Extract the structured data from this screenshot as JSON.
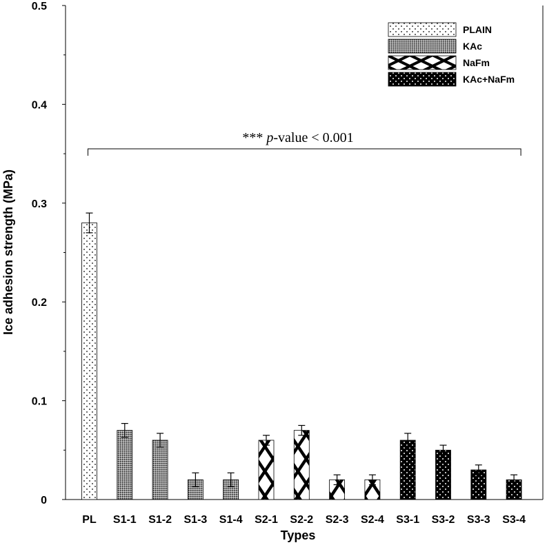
{
  "chart_data": {
    "type": "bar",
    "title": "",
    "xlabel": "Types",
    "ylabel": "Ice adhesion strength (MPa)",
    "ylim": [
      0,
      0.5
    ],
    "yticks": [
      "0",
      "0.1",
      "0.2",
      "0.3",
      "0.4",
      "0.5"
    ],
    "grid": false,
    "legend_position": "top-right",
    "categories": [
      "PL",
      "S1-1",
      "S1-2",
      "S1-3",
      "S1-4",
      "S2-1",
      "S2-2",
      "S2-3",
      "S2-4",
      "S3-1",
      "S3-2",
      "S3-3",
      "S3-4"
    ],
    "values": [
      0.28,
      0.07,
      0.06,
      0.02,
      0.02,
      0.06,
      0.07,
      0.02,
      0.02,
      0.06,
      0.05,
      0.03,
      0.02
    ],
    "errors": [
      0.01,
      0.007,
      0.007,
      0.007,
      0.007,
      0.005,
      0.005,
      0.005,
      0.005,
      0.007,
      0.005,
      0.005,
      0.005
    ],
    "groups": [
      "PLAIN",
      "KAc",
      "KAc",
      "KAc",
      "KAc",
      "NaFm",
      "NaFm",
      "NaFm",
      "NaFm",
      "KAc+NaFm",
      "KAc+NaFm",
      "KAc+NaFm",
      "KAc+NaFm"
    ],
    "legend": [
      {
        "label": "PLAIN",
        "pattern": "plain"
      },
      {
        "label": "KAc",
        "pattern": "kac"
      },
      {
        "label": "NaFm",
        "pattern": "nafm"
      },
      {
        "label": "KAc+NaFm",
        "pattern": "kacnafm"
      }
    ],
    "annotation": {
      "stars": "***",
      "p_italic": "p",
      "rest": "-value < 0.001",
      "from": "PL",
      "to": "S3-4"
    }
  }
}
